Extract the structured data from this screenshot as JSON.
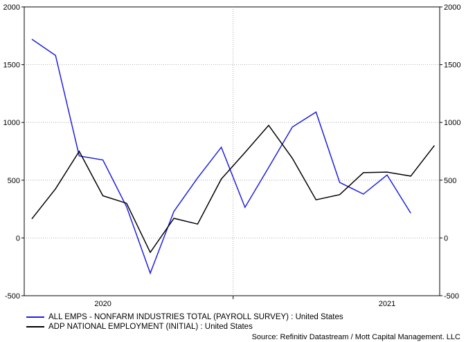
{
  "chart_data": {
    "type": "line",
    "x": [
      "2019-12",
      "2020-01",
      "2020-02",
      "2020-03",
      "2020-04",
      "2020-05",
      "2020-06",
      "2020-07",
      "2020-08",
      "2020-09",
      "2020-10",
      "2020-11",
      "2020-12",
      "2021-01",
      "2021-02",
      "2021-03",
      "2021-04",
      "2021-05",
      "2021-06"
    ],
    "x_tick_labels": [
      {
        "label": "2020",
        "at": "2020-03"
      },
      {
        "label": "2021",
        "at": "2021-03"
      }
    ],
    "x_gridline_at": "2020-08",
    "ylim": [
      -500,
      2000
    ],
    "y_ticks": [
      -500,
      0,
      500,
      1000,
      1500,
      2000
    ],
    "y_tick_labels": [
      "-500",
      "0",
      "500",
      "1000",
      "1500",
      "2000"
    ],
    "grid": true,
    "series": [
      {
        "name": "ALL EMPS - NONFARM INDUSTRIES TOTAL (PAYROLL SURVEY) : United States",
        "color": "#1f1fe0",
        "values": [
          1720,
          1580,
          710,
          675,
          270,
          -305,
          230,
          520,
          785,
          265,
          610,
          960,
          1090,
          480,
          380,
          545,
          215,
          null,
          null
        ]
      },
      {
        "name": "ADP NATIONAL EMPLOYMENT (INITIAL) : United States",
        "color": "#000000",
        "values": [
          165,
          425,
          750,
          365,
          300,
          -125,
          170,
          120,
          510,
          740,
          975,
          690,
          330,
          375,
          565,
          570,
          535,
          800,
          null
        ]
      }
    ],
    "legend_position": "bottom-left",
    "source": "Source: Refinitiv Datastream / Mott Capital Management. LLC"
  }
}
